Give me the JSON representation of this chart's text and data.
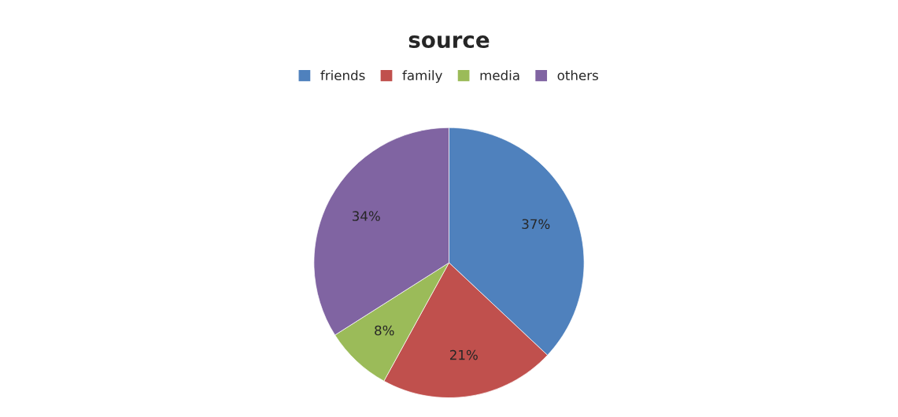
{
  "chart_data": {
    "type": "pie",
    "title": "source",
    "categories": [
      "friends",
      "family",
      "media",
      "others"
    ],
    "values": [
      37,
      21,
      8,
      34
    ],
    "colors": [
      "#4f81bd",
      "#c0504d",
      "#9bbb59",
      "#8064a2"
    ],
    "value_labels": [
      "37%",
      "21%",
      "8%",
      "34%"
    ],
    "legend": "top"
  }
}
